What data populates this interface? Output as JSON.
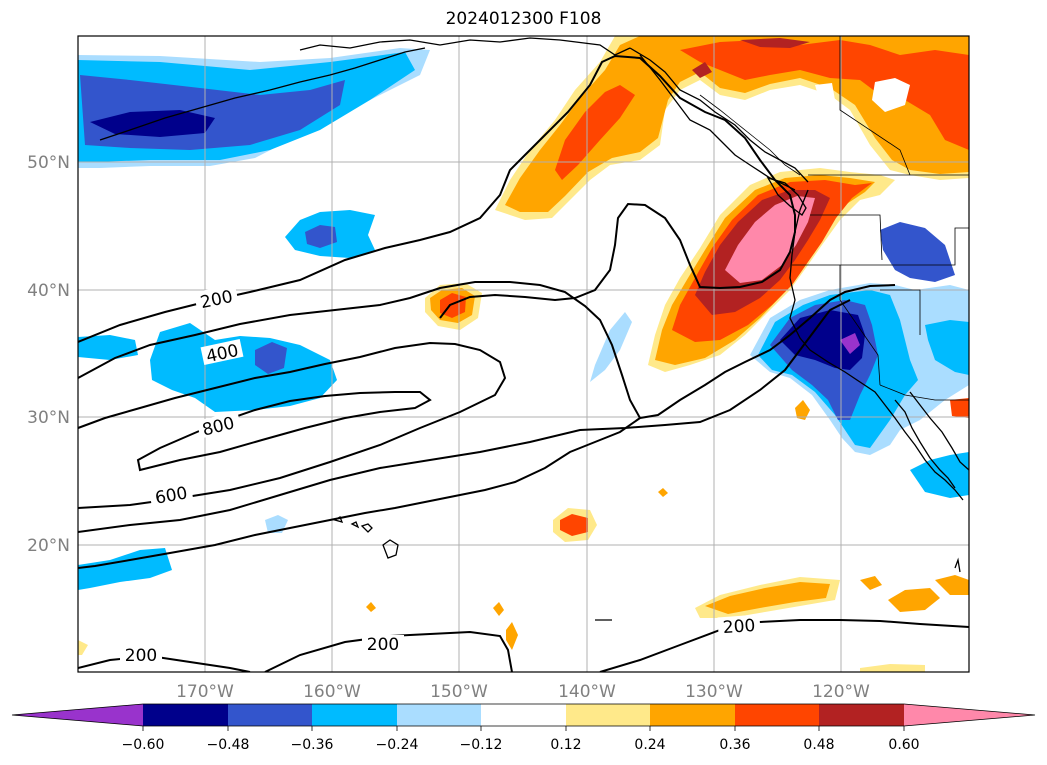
{
  "title": "2024012300 F108",
  "lat_labels": [
    "50°N",
    "40°N",
    "30°N",
    "20°N"
  ],
  "lon_labels": [
    "170°W",
    "160°W",
    "150°W",
    "140°W",
    "130°W",
    "120°W"
  ],
  "contour_labels": [
    "200",
    "400",
    "800",
    "600",
    "200",
    "200"
  ],
  "colorbar": {
    "ticks": [
      "−0.60",
      "−0.48",
      "−0.36",
      "−0.24",
      "−0.12",
      "0.12",
      "0.24",
      "0.36",
      "0.48",
      "0.60"
    ],
    "colors": [
      "#9933cc",
      "#00008b",
      "#3355cc",
      "#00bbff",
      "#aaddff",
      "#ffffff",
      "#ffe98a",
      "#ffa500",
      "#ff4500",
      "#b22222",
      "#ff88aa"
    ]
  },
  "colors": {
    "neg_strong": "#00008b",
    "neg_mid": "#3355cc",
    "neg_light": "#00bbff",
    "neg_pale": "#aaddff",
    "neg_extreme": "#9933cc",
    "pos_pale": "#ffe98a",
    "pos_light": "#ffa500",
    "pos_mid": "#ff4500",
    "pos_strong": "#b22222",
    "pos_extreme": "#ff88aa",
    "grid": "#b0b0b0",
    "tick_text": "#808080"
  }
}
